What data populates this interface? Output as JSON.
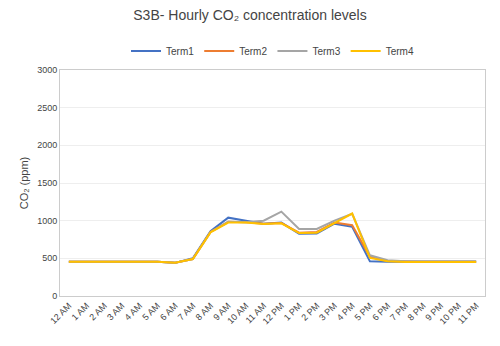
{
  "chart_data": {
    "type": "line",
    "title": "S3B- Hourly CO₂ concentration levels",
    "ylabel": "CO₂ (ppm)",
    "categories": [
      "12 AM",
      "1 AM",
      "2 AM",
      "3 AM",
      "4 AM",
      "5 AM",
      "6 AM",
      "7 AM",
      "8 AM",
      "9 AM",
      "10 AM",
      "11 AM",
      "12 PM",
      "1 PM",
      "2 PM",
      "3 PM",
      "4 PM",
      "5 PM",
      "6 PM",
      "7 PM",
      "8 PM",
      "9 PM",
      "10 PM",
      "11 PM"
    ],
    "series": [
      {
        "name": "Term1",
        "color": "#4472C4",
        "values": [
          455,
          455,
          455,
          455,
          455,
          455,
          440,
          500,
          860,
          1040,
          1000,
          960,
          975,
          825,
          830,
          960,
          920,
          460,
          455,
          455,
          455,
          455,
          455,
          455
        ]
      },
      {
        "name": "Term2",
        "color": "#ED7D31",
        "values": [
          455,
          455,
          455,
          455,
          455,
          455,
          440,
          490,
          850,
          985,
          980,
          960,
          970,
          840,
          850,
          975,
          940,
          520,
          465,
          455,
          455,
          455,
          455,
          455
        ]
      },
      {
        "name": "Term3",
        "color": "#A5A5A5",
        "values": [
          455,
          455,
          455,
          455,
          455,
          455,
          440,
          490,
          850,
          985,
          980,
          1000,
          1120,
          890,
          890,
          1000,
          1090,
          540,
          475,
          460,
          460,
          460,
          460,
          460
        ]
      },
      {
        "name": "Term4",
        "color": "#FFC000",
        "values": [
          455,
          455,
          455,
          455,
          455,
          455,
          440,
          490,
          845,
          975,
          975,
          955,
          965,
          835,
          840,
          965,
          1095,
          505,
          460,
          450,
          450,
          450,
          450,
          450
        ]
      }
    ],
    "ylim": [
      0,
      3000
    ],
    "yticks": [
      0,
      500,
      1000,
      1500,
      2000,
      2500,
      3000
    ],
    "grid": true,
    "legend": "top"
  }
}
